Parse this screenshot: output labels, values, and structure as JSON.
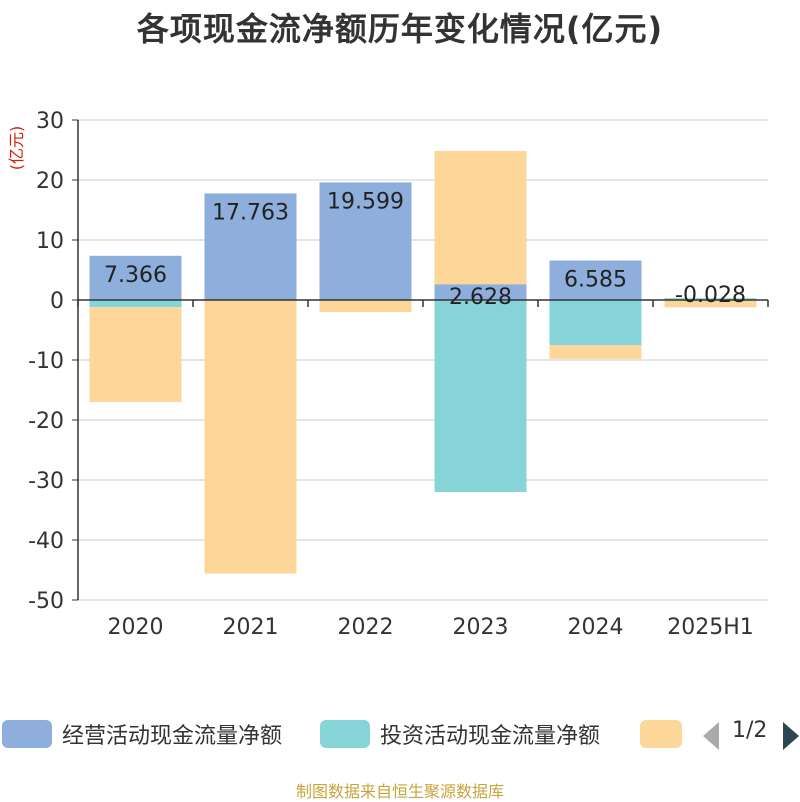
{
  "title": "各项现金流净额历年变化情况(亿元)",
  "source": "制图数据来自恒生聚源数据库",
  "legend_page": "1/2",
  "colors": {
    "operating": "#8eaedb",
    "investing": "#87d4d8",
    "financing": "#fdd79a"
  },
  "chart_data": {
    "type": "bar",
    "stacked": true,
    "title": "各项现金流净额历年变化情况(亿元)",
    "ylabel": "(亿元)",
    "ylim": [
      -50,
      30
    ],
    "yticks": [
      30,
      20,
      10,
      0,
      -10,
      -20,
      -30,
      -40,
      -50
    ],
    "grid": true,
    "legend_position": "bottom",
    "categories": [
      "2020",
      "2021",
      "2022",
      "2023",
      "2024",
      "2025H1"
    ],
    "series": [
      {
        "name": "经营活动现金流量净额",
        "values": [
          7.366,
          17.763,
          19.599,
          2.628,
          6.585,
          -0.028
        ],
        "labels": [
          "7.366",
          "17.763",
          "19.599",
          "2.628",
          "6.585",
          "-0.028"
        ]
      },
      {
        "name": "投资活动现金流量净额",
        "values": [
          -1.2,
          0,
          0,
          -32.0,
          -7.5,
          0.3
        ],
        "labels": []
      },
      {
        "name": "",
        "values": [
          -15.8,
          -45.6,
          -2.0,
          22.2,
          -2.3,
          -1.2
        ],
        "labels": []
      }
    ]
  }
}
